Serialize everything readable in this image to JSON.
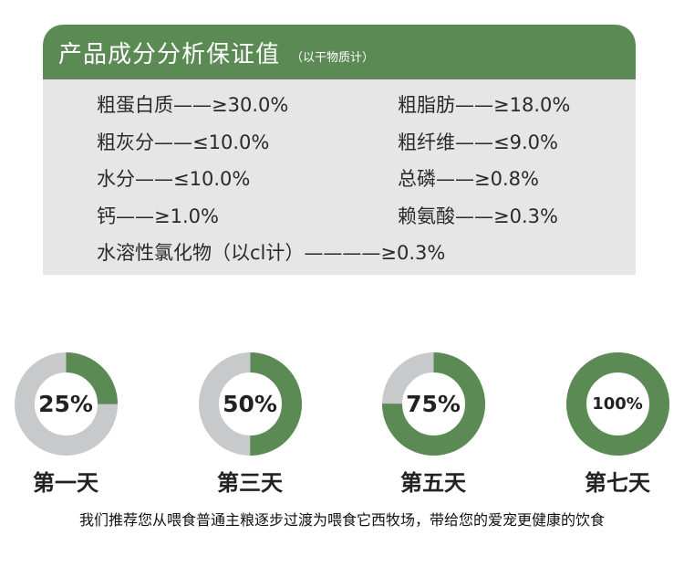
{
  "panel": {
    "title": "产品成分分析保证值",
    "note": "（以干物质计）",
    "items": [
      "粗蛋白质——≥30.0%",
      "粗脂肪——≥18.0%",
      "粗灰分——≤10.0%",
      "粗纤维——≤9.0%",
      "水分——≤10.0%",
      "总磷——≥0.8%",
      "钙——≥1.0%",
      "赖氨酸——≥0.3%",
      "水溶性氯化物（以cl计）————≥0.3%"
    ]
  },
  "rings": [
    {
      "label": "25%",
      "value": 0.25,
      "day": "第一天"
    },
    {
      "label": "50%",
      "value": 0.5,
      "day": "第三天"
    },
    {
      "label": "75%",
      "value": 0.75,
      "day": "第五天"
    },
    {
      "label": "100%",
      "value": 1.0,
      "day": "第七天"
    }
  ],
  "colors": {
    "green": "#5b8a55",
    "gray": "#c8c9cb",
    "panel_bg": "#e6e6e6"
  },
  "footer": "我们推荐您从喂食普通主粮逐步过渡为喂食它西牧场，带给您的爱宠更健康的饮食"
}
